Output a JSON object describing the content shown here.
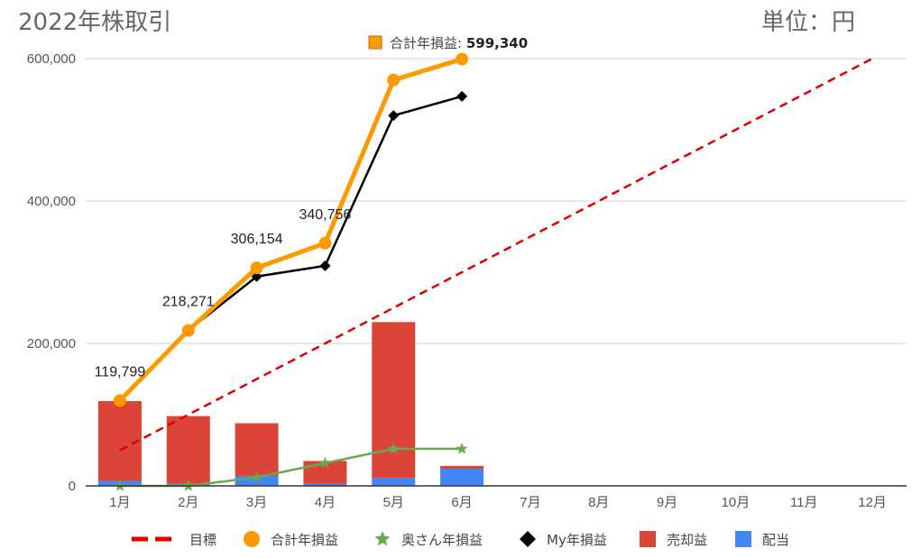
{
  "header": {
    "title": "2022年株取引",
    "unit": "単位：円"
  },
  "tooltip": {
    "series": "合計年損益",
    "separator": ": ",
    "value": "599,340"
  },
  "chart_data": {
    "type": "combo",
    "categories": [
      "1月",
      "2月",
      "3月",
      "4月",
      "5月",
      "6月",
      "7月",
      "8月",
      "9月",
      "10月",
      "11月",
      "12月"
    ],
    "ylim": [
      0,
      600000
    ],
    "yticks": [
      0,
      200000,
      400000,
      600000
    ],
    "ytick_labels": [
      "0",
      "200,000",
      "400,000",
      "600,000"
    ],
    "grid": true,
    "legend_position": "bottom",
    "series": [
      {
        "name": "売却益",
        "kind": "bar-stacked",
        "color": "#db4437",
        "values": [
          112000,
          95000,
          74000,
          32000,
          219000,
          4000,
          null,
          null,
          null,
          null,
          null,
          null
        ]
      },
      {
        "name": "配当",
        "kind": "bar-stacked",
        "color": "#4285f4",
        "values": [
          7000,
          3000,
          14000,
          3000,
          11000,
          24000,
          null,
          null,
          null,
          null,
          null,
          null
        ]
      },
      {
        "name": "目標",
        "kind": "line-dashed",
        "color": "#e00000",
        "values": [
          50000,
          100000,
          150000,
          200000,
          250000,
          300000,
          350000,
          400000,
          450000,
          500000,
          550000,
          600000
        ]
      },
      {
        "name": "合計年損益",
        "kind": "line-circle",
        "color": "#ff9900",
        "values": [
          119799,
          218271,
          306154,
          340756,
          570000,
          599340,
          null,
          null,
          null,
          null,
          null,
          null
        ]
      },
      {
        "name": "奥さん年損益",
        "kind": "line-star",
        "color": "#6aa84f",
        "values": [
          0,
          0,
          12000,
          32000,
          52000,
          52000,
          null,
          null,
          null,
          null,
          null,
          null
        ]
      },
      {
        "name": "My年損益",
        "kind": "line-diamond",
        "color": "#000000",
        "values": [
          119799,
          218271,
          294000,
          309000,
          520000,
          547000,
          null,
          null,
          null,
          null,
          null,
          null
        ]
      }
    ],
    "data_labels": [
      {
        "index": 0,
        "text": "119,799"
      },
      {
        "index": 1,
        "text": "218,271"
      },
      {
        "index": 2,
        "text": "306,154"
      },
      {
        "index": 3,
        "text": "340,756"
      }
    ],
    "legend": [
      {
        "name": "目標",
        "marker": "dash",
        "color": "#e00000"
      },
      {
        "name": "合計年損益",
        "marker": "circle",
        "color": "#ff9900"
      },
      {
        "name": "奥さん年損益",
        "marker": "star",
        "color": "#6aa84f"
      },
      {
        "name": "My年損益",
        "marker": "diamond",
        "color": "#000000"
      },
      {
        "name": "売却益",
        "marker": "square",
        "color": "#db4437"
      },
      {
        "name": "配当",
        "marker": "square",
        "color": "#4285f4"
      }
    ]
  }
}
